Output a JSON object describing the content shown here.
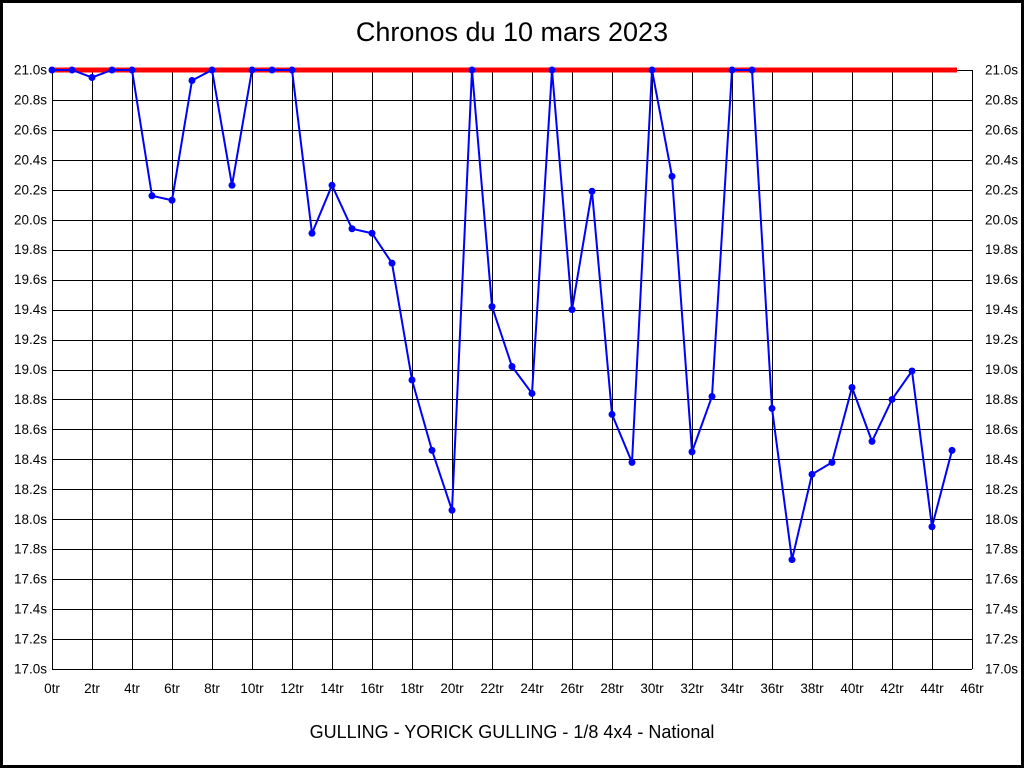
{
  "header": {
    "title": "Chronos du 10 mars 2023"
  },
  "footer": {
    "caption": "GULLING - YORICK GULLING - 1/8 4x4 - National"
  },
  "chart_data": {
    "type": "line",
    "title": "Chronos du 10 mars 2023",
    "subtitle_bottom": "GULLING - YORICK GULLING - 1/8 4x4 - National",
    "xlabel": "",
    "ylabel": "",
    "x_unit": "tr",
    "y_unit": "s",
    "xlim": [
      0,
      46
    ],
    "ylim": [
      17.0,
      21.0
    ],
    "grid": true,
    "legend_position": "none",
    "x_ticks": [
      "0tr",
      "2tr",
      "4tr",
      "6tr",
      "8tr",
      "10tr",
      "12tr",
      "14tr",
      "16tr",
      "18tr",
      "20tr",
      "22tr",
      "24tr",
      "26tr",
      "28tr",
      "30tr",
      "32tr",
      "34tr",
      "36tr",
      "38tr",
      "40tr",
      "42tr",
      "44tr",
      "46tr"
    ],
    "y_ticks_left": [
      "21.0s",
      "20.8s",
      "20.6s",
      "20.4s",
      "20.2s",
      "20.0s",
      "19.8s",
      "19.6s",
      "19.4s",
      "19.2s",
      "19.0s",
      "18.8s",
      "18.6s",
      "18.4s",
      "18.2s",
      "18.0s",
      "17.8s",
      "17.6s",
      "17.4s",
      "17.2s",
      "17.0s"
    ],
    "y_ticks_right": [
      "21.0s",
      "20.8s",
      "20.6s",
      "20.4s",
      "20.2s",
      "20.0s",
      "19.8s",
      "19.6s",
      "19.4s",
      "19.2s",
      "19.0s",
      "18.8s",
      "18.6s",
      "18.4s",
      "18.2s",
      "18.0s",
      "17.8s",
      "17.6s",
      "17.4s",
      "17.2s",
      "17.0s"
    ],
    "colors": {
      "series": "#0000ff",
      "reference": "#ff0000",
      "grid": "#000000",
      "text": "#000000",
      "background": "#ffffff"
    },
    "reference_line": {
      "name": "max-time-21s",
      "value": 21.0,
      "x_start": 0,
      "x_end": 45
    },
    "series": [
      {
        "name": "lap-times",
        "x": [
          0,
          1,
          2,
          3,
          4,
          5,
          6,
          7,
          8,
          9,
          10,
          11,
          12,
          13,
          14,
          15,
          16,
          17,
          18,
          19,
          20,
          21,
          22,
          23,
          24,
          25,
          26,
          27,
          28,
          29,
          30,
          31,
          32,
          33,
          34,
          35,
          36,
          37,
          38,
          39,
          40,
          41,
          42,
          43,
          44,
          45
        ],
        "y": [
          21.0,
          21.0,
          20.95,
          21.0,
          21.0,
          20.16,
          20.13,
          20.93,
          21.0,
          20.23,
          21.0,
          21.0,
          21.0,
          19.91,
          20.23,
          19.94,
          19.91,
          19.71,
          18.93,
          18.46,
          18.06,
          21.0,
          19.42,
          19.02,
          18.84,
          21.0,
          19.4,
          20.19,
          18.7,
          18.38,
          21.0,
          20.29,
          18.45,
          18.82,
          21.0,
          21.0,
          18.74,
          17.73,
          18.3,
          18.38,
          18.88,
          18.52,
          18.8,
          18.99,
          17.95,
          18.46
        ]
      }
    ]
  }
}
